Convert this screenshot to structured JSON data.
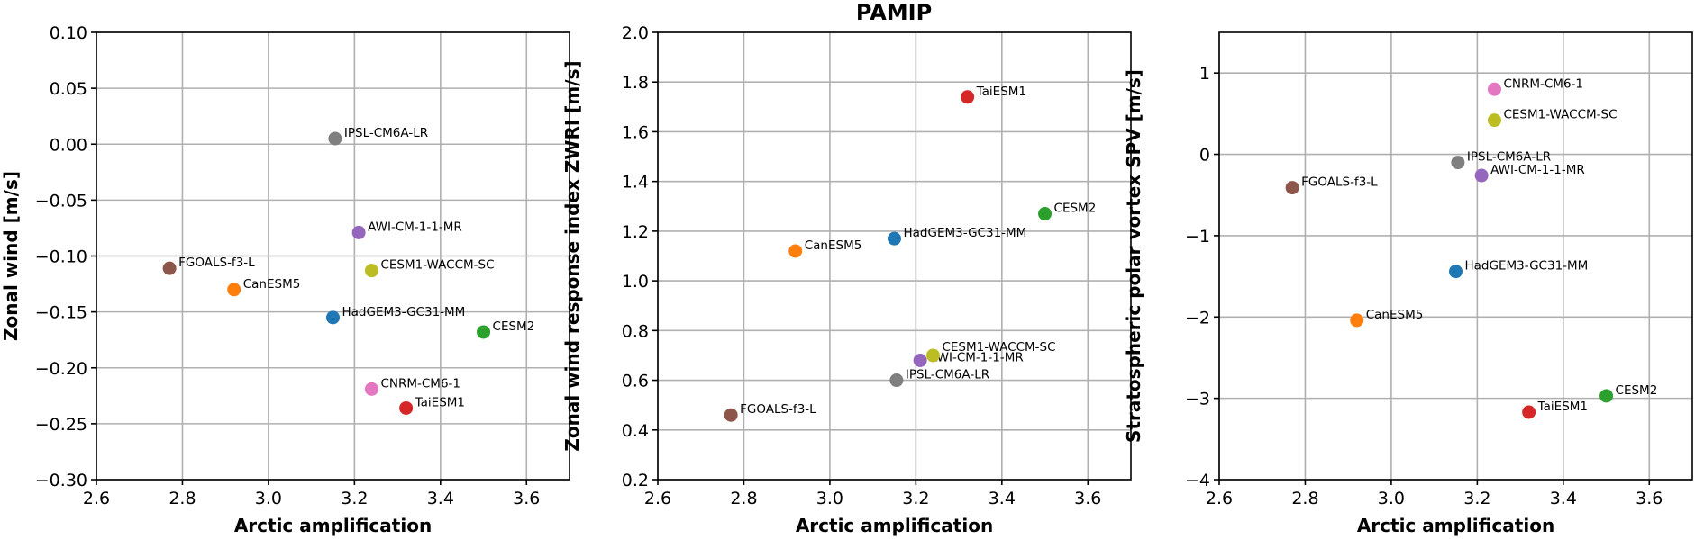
{
  "figure_title": "PAMIP",
  "colors": {
    "HadGEM3-GC31-MM": "#1f77b4",
    "CanESM5": "#ff7f0e",
    "CESM2": "#2ca02c",
    "TaiESM1": "#d62728",
    "AWI-CM-1-1-MR": "#9467bd",
    "FGOALS-f3-L": "#8c564b",
    "CNRM-CM6-1": "#e377c2",
    "IPSL-CM6A-LR": "#7f7f7f",
    "CESM1-WACCM-SC": "#bcbd22"
  },
  "chart_data": [
    {
      "type": "scatter",
      "title": "",
      "xlabel": "Arctic amplification",
      "ylabel": "Zonal wind [m/s]",
      "xlim": [
        2.6,
        3.7
      ],
      "ylim": [
        -0.3,
        0.1
      ],
      "xticks": [
        2.6,
        2.8,
        3.0,
        3.2,
        3.4,
        3.6
      ],
      "xtick_labels": [
        "2.6",
        "2.8",
        "3.0",
        "3.2",
        "3.4",
        "3.6"
      ],
      "yticks": [
        -0.3,
        -0.25,
        -0.2,
        -0.15,
        -0.1,
        -0.05,
        0.0,
        0.05,
        0.1
      ],
      "ytick_labels": [
        "−0.30",
        "−0.25",
        "−0.20",
        "−0.15",
        "−0.10",
        "−0.05",
        "0.00",
        "0.05",
        "0.10"
      ],
      "grid": true,
      "points": [
        {
          "label": "HadGEM3-GC31-MM",
          "x": 3.15,
          "y": -0.155
        },
        {
          "label": "CanESM5",
          "x": 2.92,
          "y": -0.13
        },
        {
          "label": "CESM2",
          "x": 3.5,
          "y": -0.168
        },
        {
          "label": "TaiESM1",
          "x": 3.32,
          "y": -0.236
        },
        {
          "label": "AWI-CM-1-1-MR",
          "x": 3.21,
          "y": -0.079
        },
        {
          "label": "FGOALS-f3-L",
          "x": 2.77,
          "y": -0.111
        },
        {
          "label": "CNRM-CM6-1",
          "x": 3.24,
          "y": -0.219
        },
        {
          "label": "IPSL-CM6A-LR",
          "x": 3.155,
          "y": 0.005
        },
        {
          "label": "CESM1-WACCM-SC",
          "x": 3.24,
          "y": -0.113
        }
      ]
    },
    {
      "type": "scatter",
      "title": "",
      "xlabel": "Arctic amplification",
      "ylabel": "Zonal wind response index ZWRI [m/s]",
      "xlim": [
        2.6,
        3.7
      ],
      "ylim": [
        0.2,
        2.0
      ],
      "xticks": [
        2.6,
        2.8,
        3.0,
        3.2,
        3.4,
        3.6
      ],
      "xtick_labels": [
        "2.6",
        "2.8",
        "3.0",
        "3.2",
        "3.4",
        "3.6"
      ],
      "yticks": [
        0.2,
        0.4,
        0.6,
        0.8,
        1.0,
        1.2,
        1.4,
        1.6,
        1.8,
        2.0
      ],
      "ytick_labels": [
        "0.2",
        "0.4",
        "0.6",
        "0.8",
        "1.0",
        "1.2",
        "1.4",
        "1.6",
        "1.8",
        "2.0"
      ],
      "grid": true,
      "points": [
        {
          "label": "HadGEM3-GC31-MM",
          "x": 3.15,
          "y": 1.17
        },
        {
          "label": "CanESM5",
          "x": 2.92,
          "y": 1.12
        },
        {
          "label": "CESM2",
          "x": 3.5,
          "y": 1.27
        },
        {
          "label": "TaiESM1",
          "x": 3.32,
          "y": 1.74
        },
        {
          "label": "AWI-CM-1-1-MR",
          "x": 3.21,
          "y": 0.68
        },
        {
          "label": "FGOALS-f3-L",
          "x": 2.77,
          "y": 0.46
        },
        {
          "label": "IPSL-CM6A-LR",
          "x": 3.155,
          "y": 0.6
        },
        {
          "label": "CESM1-WACCM-SC",
          "x": 3.24,
          "y": 0.7
        }
      ]
    },
    {
      "type": "scatter",
      "title": "",
      "xlabel": "Arctic amplification",
      "ylabel": "Stratospheric polar vortex SPV [m/s]",
      "xlim": [
        2.6,
        3.7
      ],
      "ylim": [
        -4,
        1.5
      ],
      "xticks": [
        2.6,
        2.8,
        3.0,
        3.2,
        3.4,
        3.6
      ],
      "xtick_labels": [
        "2.6",
        "2.8",
        "3.0",
        "3.2",
        "3.4",
        "3.6"
      ],
      "yticks": [
        -4,
        -3,
        -2,
        -1,
        0,
        1
      ],
      "ytick_labels": [
        "−4",
        "−3",
        "−2",
        "−1",
        "0",
        "1"
      ],
      "grid": true,
      "points": [
        {
          "label": "HadGEM3-GC31-MM",
          "x": 3.15,
          "y": -1.44
        },
        {
          "label": "CanESM5",
          "x": 2.92,
          "y": -2.04
        },
        {
          "label": "CESM2",
          "x": 3.5,
          "y": -2.97
        },
        {
          "label": "TaiESM1",
          "x": 3.32,
          "y": -3.17
        },
        {
          "label": "AWI-CM-1-1-MR",
          "x": 3.21,
          "y": -0.26
        },
        {
          "label": "FGOALS-f3-L",
          "x": 2.77,
          "y": -0.41
        },
        {
          "label": "CNRM-CM6-1",
          "x": 3.24,
          "y": 0.8
        },
        {
          "label": "IPSL-CM6A-LR",
          "x": 3.155,
          "y": -0.1
        },
        {
          "label": "CESM1-WACCM-SC",
          "x": 3.24,
          "y": 0.42
        }
      ]
    }
  ]
}
